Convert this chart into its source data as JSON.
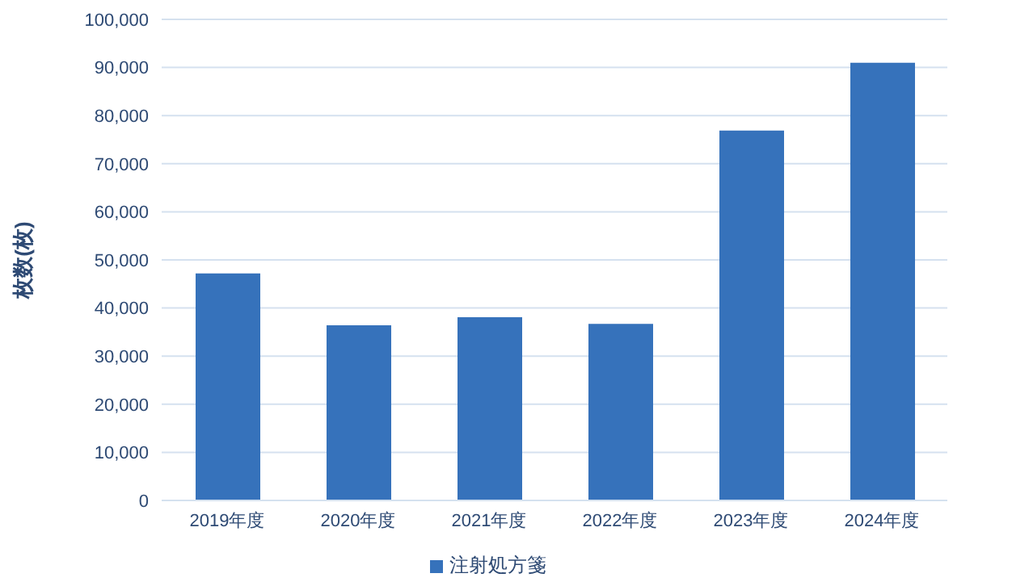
{
  "chart_data": {
    "type": "bar",
    "ylabel": "枚数(枚)",
    "categories": [
      "2019年度",
      "2020年度",
      "2021年度",
      "2022年度",
      "2023年度",
      "2024年度"
    ],
    "series": [
      {
        "name": "注射処方箋",
        "color": "#3672bb",
        "values": [
          47200,
          36400,
          38100,
          36700,
          76900,
          91000
        ]
      }
    ],
    "ylim": [
      0,
      100000
    ],
    "yticks": [
      0,
      {
        "value": 10000,
        "label": "10,000"
      },
      {
        "value": 20000,
        "label": "20,000"
      },
      {
        "value": 30000,
        "label": "30,000"
      },
      {
        "value": 40000,
        "label": "40,000"
      },
      {
        "value": 50000,
        "label": "50,000"
      },
      {
        "value": 60000,
        "label": "60,000"
      },
      {
        "value": 70000,
        "label": "70,000"
      },
      {
        "value": 80000,
        "label": "80,000"
      },
      {
        "value": 90000,
        "label": "90,000"
      },
      {
        "value": 100000,
        "label": "100,000"
      }
    ],
    "grid": "y",
    "legend": "bottom"
  }
}
